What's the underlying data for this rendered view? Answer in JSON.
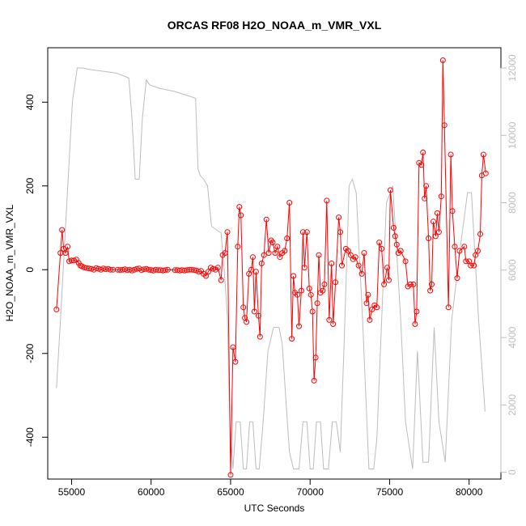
{
  "chart_data": {
    "type": "line",
    "title": "ORCAS RF08 H2O_NOAA_m_VMR_VXL",
    "xlabel": "UTC Seconds",
    "ylabel": "H2O_NOAA_m_VMR_VXL",
    "xlim": [
      53500,
      82000
    ],
    "ylim": [
      -500,
      530
    ],
    "y2lim": [
      -200,
      12600
    ],
    "x_ticks": [
      55000,
      60000,
      65000,
      70000,
      75000,
      80000
    ],
    "y_ticks": [
      -400,
      -200,
      0,
      200,
      400
    ],
    "y2_ticks": [
      0,
      2000,
      4000,
      6000,
      8000,
      10000,
      12000
    ],
    "grid": false,
    "series": [
      {
        "role": "primary",
        "color": "#ff0000",
        "marker": "open-circle",
        "points": [
          [
            54050,
            -95
          ],
          [
            54300,
            40
          ],
          [
            54400,
            95
          ],
          [
            54500,
            50
          ],
          [
            54620,
            40
          ],
          [
            54750,
            55
          ],
          [
            54850,
            20
          ],
          [
            55000,
            22
          ],
          [
            55150,
            22
          ],
          [
            55300,
            24
          ],
          [
            55450,
            16
          ],
          [
            55550,
            10
          ],
          [
            55650,
            8
          ],
          [
            55800,
            5
          ],
          [
            55950,
            4
          ],
          [
            56100,
            3
          ],
          [
            56250,
            2
          ],
          [
            56400,
            0
          ],
          [
            56550,
            4
          ],
          [
            56700,
            2
          ],
          [
            56850,
            0
          ],
          [
            57000,
            3
          ],
          [
            57150,
            1
          ],
          [
            57300,
            2
          ],
          [
            57450,
            0
          ],
          [
            57600,
            0
          ],
          [
            57900,
            0
          ],
          [
            58050,
            -1
          ],
          [
            58200,
            0
          ],
          [
            58350,
            1
          ],
          [
            58500,
            -1
          ],
          [
            58650,
            0
          ],
          [
            58800,
            -2
          ],
          [
            58950,
            0
          ],
          [
            59100,
            2
          ],
          [
            59250,
            3
          ],
          [
            59400,
            -1
          ],
          [
            59550,
            1
          ],
          [
            59700,
            2
          ],
          [
            59850,
            0
          ],
          [
            60000,
            -1
          ],
          [
            60150,
            -2
          ],
          [
            60300,
            0
          ],
          [
            60450,
            -1
          ],
          [
            60600,
            -1
          ],
          [
            60750,
            -2
          ],
          [
            60900,
            -1
          ],
          [
            61050,
            0
          ],
          [
            61500,
            -1
          ],
          [
            61650,
            -1
          ],
          [
            61800,
            -2
          ],
          [
            61950,
            -1
          ],
          [
            62100,
            -2
          ],
          [
            62250,
            -1
          ],
          [
            62400,
            0
          ],
          [
            62550,
            0
          ],
          [
            62700,
            -1
          ],
          [
            62850,
            -2
          ],
          [
            63000,
            -5
          ],
          [
            63150,
            -3
          ],
          [
            63300,
            -10
          ],
          [
            63450,
            -15
          ],
          [
            63600,
            -5
          ],
          [
            63750,
            5
          ],
          [
            63900,
            2
          ],
          [
            64050,
            0
          ],
          [
            64200,
            5
          ],
          [
            64400,
            -25
          ],
          [
            64500,
            35
          ],
          [
            64650,
            40
          ],
          [
            64800,
            90
          ],
          [
            65000,
            -490
          ],
          [
            65150,
            -185
          ],
          [
            65300,
            -220
          ],
          [
            65450,
            55
          ],
          [
            65550,
            150
          ],
          [
            65650,
            130
          ],
          [
            65800,
            -90
          ],
          [
            65900,
            -115
          ],
          [
            66000,
            -125
          ],
          [
            66150,
            -10
          ],
          [
            66300,
            0
          ],
          [
            66400,
            30
          ],
          [
            66500,
            -100
          ],
          [
            66600,
            -5
          ],
          [
            66750,
            -110
          ],
          [
            66850,
            -160
          ],
          [
            66950,
            15
          ],
          [
            67100,
            35
          ],
          [
            67250,
            120
          ],
          [
            67400,
            40
          ],
          [
            67550,
            70
          ],
          [
            67650,
            65
          ],
          [
            67800,
            40
          ],
          [
            67950,
            55
          ],
          [
            68100,
            30
          ],
          [
            68250,
            40
          ],
          [
            68400,
            45
          ],
          [
            68550,
            75
          ],
          [
            68700,
            160
          ],
          [
            68850,
            -165
          ],
          [
            68950,
            -15
          ],
          [
            69050,
            -55
          ],
          [
            69200,
            -60
          ],
          [
            69300,
            -135
          ],
          [
            69450,
            -50
          ],
          [
            69550,
            90
          ],
          [
            69650,
            5
          ],
          [
            69800,
            90
          ],
          [
            69950,
            -45
          ],
          [
            70050,
            -60
          ],
          [
            70150,
            -100
          ],
          [
            70250,
            -265
          ],
          [
            70350,
            -210
          ],
          [
            70450,
            -80
          ],
          [
            70550,
            35
          ],
          [
            70650,
            -55
          ],
          [
            70800,
            -50
          ],
          [
            70900,
            -35
          ],
          [
            71050,
            165
          ],
          [
            71200,
            -120
          ],
          [
            71350,
            15
          ],
          [
            71450,
            -130
          ],
          [
            71600,
            -30
          ],
          [
            71800,
            125
          ],
          [
            71900,
            90
          ],
          [
            72000,
            10
          ],
          [
            72250,
            50
          ],
          [
            72400,
            45
          ],
          [
            72550,
            35
          ],
          [
            72700,
            25
          ],
          [
            72850,
            30
          ],
          [
            73050,
            10
          ],
          [
            73250,
            -10
          ],
          [
            73400,
            40
          ],
          [
            73550,
            -80
          ],
          [
            73650,
            -60
          ],
          [
            73750,
            -120
          ],
          [
            73900,
            -95
          ],
          [
            74050,
            -85
          ],
          [
            74200,
            -90
          ],
          [
            74350,
            65
          ],
          [
            74500,
            50
          ],
          [
            74650,
            -35
          ],
          [
            74850,
            5
          ],
          [
            74950,
            -25
          ],
          [
            75050,
            190
          ],
          [
            75250,
            100
          ],
          [
            75350,
            80
          ],
          [
            75450,
            60
          ],
          [
            75550,
            40
          ],
          [
            75700,
            45
          ],
          [
            76000,
            20
          ],
          [
            76150,
            -40
          ],
          [
            76300,
            -35
          ],
          [
            76500,
            -35
          ],
          [
            76600,
            -130
          ],
          [
            76700,
            -100
          ],
          [
            76850,
            255
          ],
          [
            77000,
            250
          ],
          [
            77100,
            280
          ],
          [
            77200,
            170
          ],
          [
            77300,
            200
          ],
          [
            77450,
            75
          ],
          [
            77550,
            -50
          ],
          [
            77650,
            -35
          ],
          [
            77750,
            115
          ],
          [
            77900,
            80
          ],
          [
            78000,
            135
          ],
          [
            78100,
            90
          ],
          [
            78250,
            175
          ],
          [
            78350,
            500
          ],
          [
            78450,
            345
          ],
          [
            78700,
            -90
          ],
          [
            78850,
            275
          ],
          [
            78950,
            140
          ],
          [
            79100,
            55
          ],
          [
            79250,
            -20
          ],
          [
            79400,
            45
          ],
          [
            79700,
            55
          ],
          [
            79800,
            20
          ],
          [
            80000,
            20
          ],
          [
            80100,
            10
          ],
          [
            80300,
            10
          ],
          [
            80400,
            35
          ],
          [
            80550,
            45
          ],
          [
            80700,
            85
          ],
          [
            80800,
            225
          ],
          [
            80900,
            275
          ],
          [
            81050,
            230
          ]
        ]
      },
      {
        "role": "secondary",
        "color": "#bdbdbd",
        "marker": "none",
        "points": [
          [
            54050,
            2500
          ],
          [
            54300,
            4500
          ],
          [
            54700,
            8000
          ],
          [
            55050,
            11000
          ],
          [
            55350,
            12000
          ],
          [
            55700,
            12000
          ],
          [
            56200,
            11950
          ],
          [
            57000,
            11900
          ],
          [
            57800,
            11850
          ],
          [
            58350,
            11750
          ],
          [
            58600,
            11700
          ],
          [
            58800,
            10500
          ],
          [
            59000,
            8700
          ],
          [
            59250,
            8700
          ],
          [
            59450,
            10500
          ],
          [
            59700,
            11650
          ],
          [
            59900,
            11500
          ],
          [
            60500,
            11400
          ],
          [
            61500,
            11300
          ],
          [
            62500,
            11150
          ],
          [
            62800,
            11100
          ],
          [
            62950,
            9000
          ],
          [
            63100,
            8800
          ],
          [
            63300,
            8700
          ],
          [
            63550,
            8500
          ],
          [
            63800,
            7300
          ],
          [
            64100,
            7200
          ],
          [
            64400,
            7100
          ],
          [
            64600,
            6000
          ],
          [
            64800,
            4600
          ],
          [
            64950,
            1500
          ],
          [
            65150,
            100
          ],
          [
            65350,
            1500
          ],
          [
            65600,
            1500
          ],
          [
            65800,
            100
          ],
          [
            66000,
            100
          ],
          [
            66200,
            1500
          ],
          [
            66400,
            1500
          ],
          [
            66600,
            100
          ],
          [
            66800,
            100
          ],
          [
            67050,
            1500
          ],
          [
            67350,
            3600
          ],
          [
            67700,
            4300
          ],
          [
            68050,
            4300
          ],
          [
            68250,
            3800
          ],
          [
            68500,
            2000
          ],
          [
            68700,
            600
          ],
          [
            68950,
            100
          ],
          [
            69300,
            100
          ],
          [
            69550,
            1500
          ],
          [
            69800,
            1500
          ],
          [
            70000,
            100
          ],
          [
            70200,
            100
          ],
          [
            70400,
            1500
          ],
          [
            70650,
            1500
          ],
          [
            70850,
            100
          ],
          [
            71150,
            100
          ],
          [
            71400,
            1500
          ],
          [
            71650,
            1500
          ],
          [
            71900,
            600
          ],
          [
            72150,
            4000
          ],
          [
            72450,
            8500
          ],
          [
            72650,
            8700
          ],
          [
            72900,
            8300
          ],
          [
            73300,
            4500
          ],
          [
            73700,
            100
          ],
          [
            74000,
            100
          ],
          [
            74200,
            1000
          ],
          [
            74500,
            4500
          ],
          [
            74800,
            8000
          ],
          [
            75200,
            8500
          ],
          [
            75700,
            4500
          ],
          [
            76000,
            1500
          ],
          [
            76450,
            100
          ],
          [
            76750,
            3600
          ],
          [
            77100,
            300
          ],
          [
            77450,
            300
          ],
          [
            77800,
            4300
          ],
          [
            78100,
            1500
          ],
          [
            78500,
            300
          ],
          [
            78900,
            4500
          ],
          [
            79400,
            6500
          ],
          [
            79900,
            8300
          ],
          [
            80150,
            8300
          ],
          [
            80600,
            4500
          ],
          [
            81000,
            1800
          ]
        ]
      }
    ]
  }
}
